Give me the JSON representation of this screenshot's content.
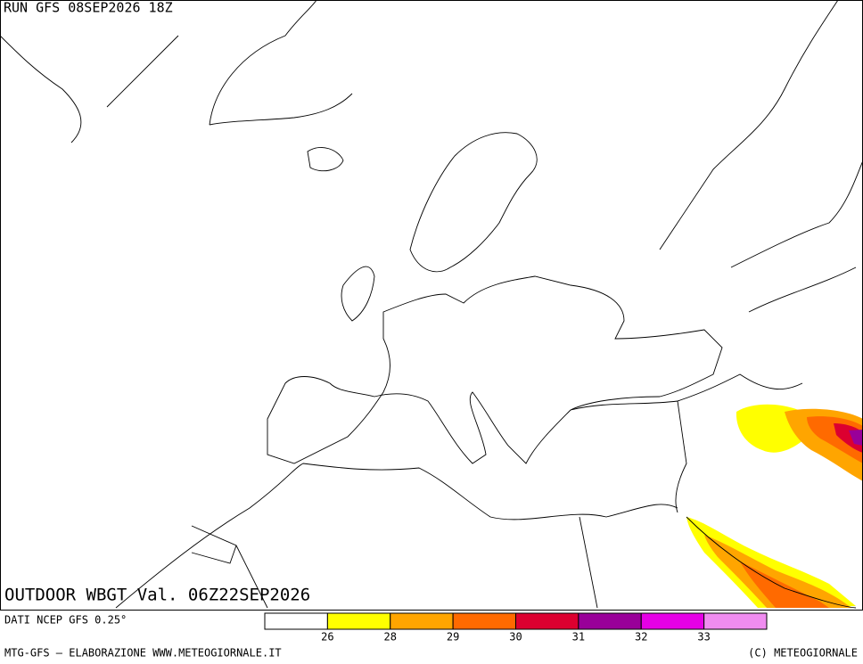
{
  "header": {
    "run": "RUN GFS 08SEP2026 18Z"
  },
  "map": {
    "title": "OUTDOOR WBGT Val. 06Z22SEP2026"
  },
  "source": "DATI NCEP GFS 0.25°",
  "legend": {
    "colors": [
      "#ffffff",
      "#ffff00",
      "#ffa500",
      "#ff6a00",
      "#dc0030",
      "#990099",
      "#e600e6",
      "#f08cf0"
    ],
    "ticks": [
      "26",
      "28",
      "29",
      "30",
      "31",
      "32",
      "33"
    ]
  },
  "footer": {
    "left": "MTG-GFS — ELABORAZIONE WWW.METEOGIORNALE.IT",
    "right": "(C) METEOGIORNALE"
  }
}
